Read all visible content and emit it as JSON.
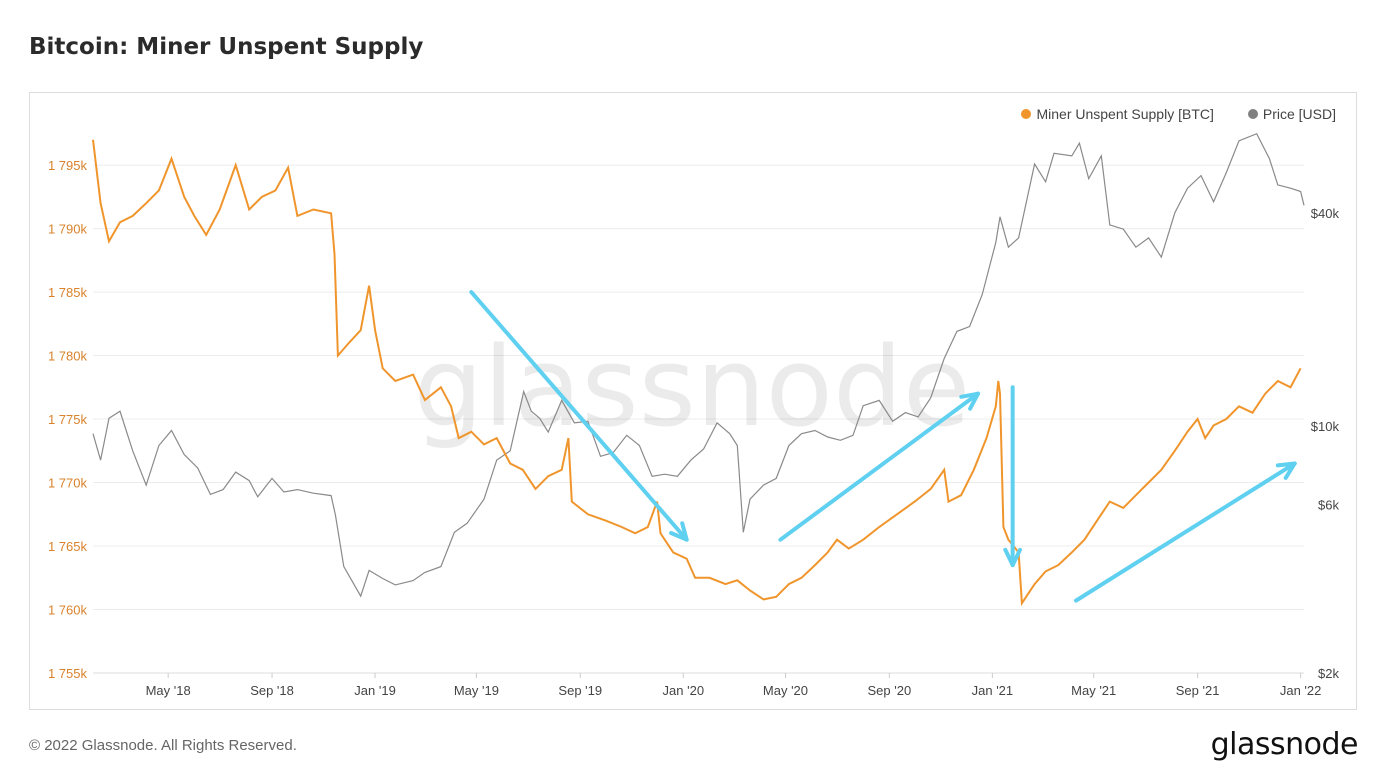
{
  "header": {
    "title": "Bitcoin: Miner Unspent Supply"
  },
  "footer": {
    "copyright": "© 2022 Glassnode. All Rights Reserved.",
    "brand": "glassnode"
  },
  "watermark": "glassnode",
  "chart_data": {
    "type": "line",
    "title": "Bitcoin: Miner Unspent Supply",
    "legend_position": "top-right",
    "grid": true,
    "x_ticks": [
      "May '18",
      "Sep '18",
      "Jan '19",
      "May '19",
      "Sep '19",
      "Jan '20",
      "May '20",
      "Sep '20",
      "Jan '21",
      "May '21",
      "Sep '21",
      "Jan '22"
    ],
    "x_range": [
      "2018-02-01",
      "2022-01-05"
    ],
    "y_left": {
      "ticks": [
        "1 755k",
        "1 760k",
        "1 765k",
        "1 770k",
        "1 775k",
        "1 780k",
        "1 785k",
        "1 790k",
        "1 795k"
      ],
      "range": [
        1755000,
        1798000
      ]
    },
    "y_right": {
      "scale": "log",
      "ticks": [
        "$2k",
        "$6k",
        "$10k",
        "$40k"
      ],
      "range": [
        2000,
        70000
      ]
    },
    "series": [
      {
        "name": "Miner Unspent Supply [BTC]",
        "axis": "left",
        "color": "#f0952c",
        "points": [
          [
            "2018-02-01",
            1797000
          ],
          [
            "2018-02-10",
            1792000
          ],
          [
            "2018-02-20",
            1789000
          ],
          [
            "2018-03-05",
            1790500
          ],
          [
            "2018-03-20",
            1791000
          ],
          [
            "2018-04-05",
            1792000
          ],
          [
            "2018-04-20",
            1793000
          ],
          [
            "2018-05-05",
            1795500
          ],
          [
            "2018-05-20",
            1792500
          ],
          [
            "2018-06-01",
            1791000
          ],
          [
            "2018-06-15",
            1789500
          ],
          [
            "2018-07-01",
            1791500
          ],
          [
            "2018-07-20",
            1795000
          ],
          [
            "2018-08-05",
            1791500
          ],
          [
            "2018-08-20",
            1792500
          ],
          [
            "2018-09-05",
            1793000
          ],
          [
            "2018-09-20",
            1794800
          ],
          [
            "2018-10-01",
            1791000
          ],
          [
            "2018-10-20",
            1791500
          ],
          [
            "2018-11-10",
            1791200
          ],
          [
            "2018-11-14",
            1788000
          ],
          [
            "2018-11-18",
            1780000
          ],
          [
            "2018-12-01",
            1781000
          ],
          [
            "2018-12-15",
            1782000
          ],
          [
            "2018-12-25",
            1785500
          ],
          [
            "2019-01-01",
            1782000
          ],
          [
            "2019-01-10",
            1779000
          ],
          [
            "2019-01-25",
            1778000
          ],
          [
            "2019-02-15",
            1778500
          ],
          [
            "2019-03-01",
            1776500
          ],
          [
            "2019-03-20",
            1777500
          ],
          [
            "2019-04-01",
            1776000
          ],
          [
            "2019-04-10",
            1773500
          ],
          [
            "2019-04-25",
            1774000
          ],
          [
            "2019-05-10",
            1773000
          ],
          [
            "2019-05-25",
            1773500
          ],
          [
            "2019-06-10",
            1771500
          ],
          [
            "2019-06-25",
            1771000
          ],
          [
            "2019-07-10",
            1769500
          ],
          [
            "2019-07-25",
            1770500
          ],
          [
            "2019-08-10",
            1771000
          ],
          [
            "2019-08-18",
            1773500
          ],
          [
            "2019-08-22",
            1768500
          ],
          [
            "2019-09-10",
            1767500
          ],
          [
            "2019-10-01",
            1767000
          ],
          [
            "2019-10-20",
            1766500
          ],
          [
            "2019-11-05",
            1766000
          ],
          [
            "2019-11-20",
            1766500
          ],
          [
            "2019-12-01",
            1768500
          ],
          [
            "2019-12-05",
            1766000
          ],
          [
            "2019-12-20",
            1764500
          ],
          [
            "2020-01-05",
            1764000
          ],
          [
            "2020-01-15",
            1762500
          ],
          [
            "2020-02-01",
            1762500
          ],
          [
            "2020-02-20",
            1762000
          ],
          [
            "2020-03-05",
            1762300
          ],
          [
            "2020-03-20",
            1761500
          ],
          [
            "2020-04-05",
            1760800
          ],
          [
            "2020-04-20",
            1761000
          ],
          [
            "2020-05-05",
            1762000
          ],
          [
            "2020-05-20",
            1762500
          ],
          [
            "2020-06-05",
            1763500
          ],
          [
            "2020-06-20",
            1764500
          ],
          [
            "2020-07-01",
            1765500
          ],
          [
            "2020-07-15",
            1764800
          ],
          [
            "2020-08-01",
            1765500
          ],
          [
            "2020-08-20",
            1766500
          ],
          [
            "2020-09-10",
            1767500
          ],
          [
            "2020-10-01",
            1768500
          ],
          [
            "2020-10-20",
            1769500
          ],
          [
            "2020-11-05",
            1771000
          ],
          [
            "2020-11-10",
            1768500
          ],
          [
            "2020-11-25",
            1769000
          ],
          [
            "2020-12-10",
            1771000
          ],
          [
            "2020-12-25",
            1773500
          ],
          [
            "2021-01-05",
            1776000
          ],
          [
            "2021-01-08",
            1778000
          ],
          [
            "2021-01-10",
            1777000
          ],
          [
            "2021-01-14",
            1766500
          ],
          [
            "2021-01-20",
            1765500
          ],
          [
            "2021-02-01",
            1764500
          ],
          [
            "2021-02-05",
            1760500
          ],
          [
            "2021-02-20",
            1762000
          ],
          [
            "2021-03-05",
            1763000
          ],
          [
            "2021-03-20",
            1763500
          ],
          [
            "2021-04-05",
            1764500
          ],
          [
            "2021-04-20",
            1765500
          ],
          [
            "2021-05-05",
            1767000
          ],
          [
            "2021-05-20",
            1768500
          ],
          [
            "2021-06-05",
            1768000
          ],
          [
            "2021-06-20",
            1769000
          ],
          [
            "2021-07-05",
            1770000
          ],
          [
            "2021-07-20",
            1771000
          ],
          [
            "2021-08-05",
            1772500
          ],
          [
            "2021-08-20",
            1774000
          ],
          [
            "2021-09-01",
            1775000
          ],
          [
            "2021-09-10",
            1773500
          ],
          [
            "2021-09-20",
            1774500
          ],
          [
            "2021-10-05",
            1775000
          ],
          [
            "2021-10-20",
            1776000
          ],
          [
            "2021-11-05",
            1775500
          ],
          [
            "2021-11-20",
            1777000
          ],
          [
            "2021-12-05",
            1778000
          ],
          [
            "2021-12-20",
            1777500
          ],
          [
            "2022-01-01",
            1779000
          ]
        ]
      },
      {
        "name": "Price [USD]",
        "axis": "right",
        "color": "#8a8a8a",
        "points": [
          [
            "2018-02-01",
            9500
          ],
          [
            "2018-02-10",
            8000
          ],
          [
            "2018-02-20",
            10500
          ],
          [
            "2018-03-05",
            11000
          ],
          [
            "2018-03-20",
            8500
          ],
          [
            "2018-04-05",
            6800
          ],
          [
            "2018-04-20",
            8800
          ],
          [
            "2018-05-05",
            9700
          ],
          [
            "2018-05-20",
            8300
          ],
          [
            "2018-06-05",
            7600
          ],
          [
            "2018-06-20",
            6400
          ],
          [
            "2018-07-05",
            6600
          ],
          [
            "2018-07-20",
            7400
          ],
          [
            "2018-08-05",
            7000
          ],
          [
            "2018-08-15",
            6300
          ],
          [
            "2018-09-01",
            7100
          ],
          [
            "2018-09-15",
            6500
          ],
          [
            "2018-10-01",
            6600
          ],
          [
            "2018-10-20",
            6450
          ],
          [
            "2018-11-10",
            6350
          ],
          [
            "2018-11-15",
            5600
          ],
          [
            "2018-11-25",
            4000
          ],
          [
            "2018-12-15",
            3300
          ],
          [
            "2018-12-25",
            3900
          ],
          [
            "2019-01-10",
            3700
          ],
          [
            "2019-01-25",
            3550
          ],
          [
            "2019-02-15",
            3650
          ],
          [
            "2019-03-01",
            3850
          ],
          [
            "2019-03-20",
            4000
          ],
          [
            "2019-04-05",
            5000
          ],
          [
            "2019-04-20",
            5300
          ],
          [
            "2019-05-10",
            6200
          ],
          [
            "2019-05-25",
            8000
          ],
          [
            "2019-06-10",
            8500
          ],
          [
            "2019-06-26",
            12500
          ],
          [
            "2019-07-05",
            11000
          ],
          [
            "2019-07-15",
            10500
          ],
          [
            "2019-07-25",
            9600
          ],
          [
            "2019-08-10",
            11800
          ],
          [
            "2019-08-25",
            10200
          ],
          [
            "2019-09-10",
            10300
          ],
          [
            "2019-09-25",
            8200
          ],
          [
            "2019-10-10",
            8400
          ],
          [
            "2019-10-26",
            9400
          ],
          [
            "2019-11-10",
            8800
          ],
          [
            "2019-11-25",
            7200
          ],
          [
            "2019-12-10",
            7300
          ],
          [
            "2019-12-25",
            7200
          ],
          [
            "2020-01-10",
            8000
          ],
          [
            "2020-01-25",
            8600
          ],
          [
            "2020-02-10",
            10200
          ],
          [
            "2020-02-25",
            9500
          ],
          [
            "2020-03-05",
            8800
          ],
          [
            "2020-03-12",
            5000
          ],
          [
            "2020-03-20",
            6200
          ],
          [
            "2020-04-05",
            6800
          ],
          [
            "2020-04-20",
            7100
          ],
          [
            "2020-05-05",
            8800
          ],
          [
            "2020-05-20",
            9500
          ],
          [
            "2020-06-05",
            9700
          ],
          [
            "2020-06-20",
            9300
          ],
          [
            "2020-07-05",
            9100
          ],
          [
            "2020-07-20",
            9400
          ],
          [
            "2020-08-01",
            11400
          ],
          [
            "2020-08-20",
            11800
          ],
          [
            "2020-09-05",
            10300
          ],
          [
            "2020-09-20",
            10900
          ],
          [
            "2020-10-05",
            10600
          ],
          [
            "2020-10-20",
            12000
          ],
          [
            "2020-11-05",
            15500
          ],
          [
            "2020-11-20",
            18500
          ],
          [
            "2020-12-05",
            19100
          ],
          [
            "2020-12-20",
            23500
          ],
          [
            "2021-01-05",
            33000
          ],
          [
            "2021-01-10",
            39000
          ],
          [
            "2021-01-20",
            32000
          ],
          [
            "2021-02-01",
            34000
          ],
          [
            "2021-02-20",
            55000
          ],
          [
            "2021-03-05",
            49000
          ],
          [
            "2021-03-15",
            59000
          ],
          [
            "2021-04-05",
            58000
          ],
          [
            "2021-04-14",
            63000
          ],
          [
            "2021-04-25",
            50000
          ],
          [
            "2021-05-10",
            58000
          ],
          [
            "2021-05-20",
            37000
          ],
          [
            "2021-06-05",
            36000
          ],
          [
            "2021-06-20",
            32000
          ],
          [
            "2021-07-05",
            34000
          ],
          [
            "2021-07-20",
            30000
          ],
          [
            "2021-08-05",
            40000
          ],
          [
            "2021-08-20",
            47000
          ],
          [
            "2021-09-05",
            51000
          ],
          [
            "2021-09-20",
            43000
          ],
          [
            "2021-10-05",
            52000
          ],
          [
            "2021-10-20",
            64000
          ],
          [
            "2021-11-10",
            67000
          ],
          [
            "2021-11-25",
            57000
          ],
          [
            "2021-12-05",
            48000
          ],
          [
            "2021-12-20",
            47000
          ],
          [
            "2022-01-01",
            46000
          ],
          [
            "2022-01-05",
            42000
          ]
        ]
      }
    ],
    "annotations": {
      "arrows_color": "#5fd0f0",
      "arrows": [
        {
          "from": [
            "2019-04-25",
            1785000
          ],
          "to": [
            "2020-01-05",
            1765500
          ]
        },
        {
          "from": [
            "2020-04-25",
            1765500
          ],
          "to": [
            "2020-12-15",
            1777000
          ]
        },
        {
          "from": [
            "2021-01-25",
            1777500
          ],
          "to": [
            "2021-01-25",
            1763500
          ]
        },
        {
          "from": [
            "2021-04-10",
            1760700
          ],
          "to": [
            "2021-12-25",
            1771500
          ]
        }
      ]
    }
  }
}
